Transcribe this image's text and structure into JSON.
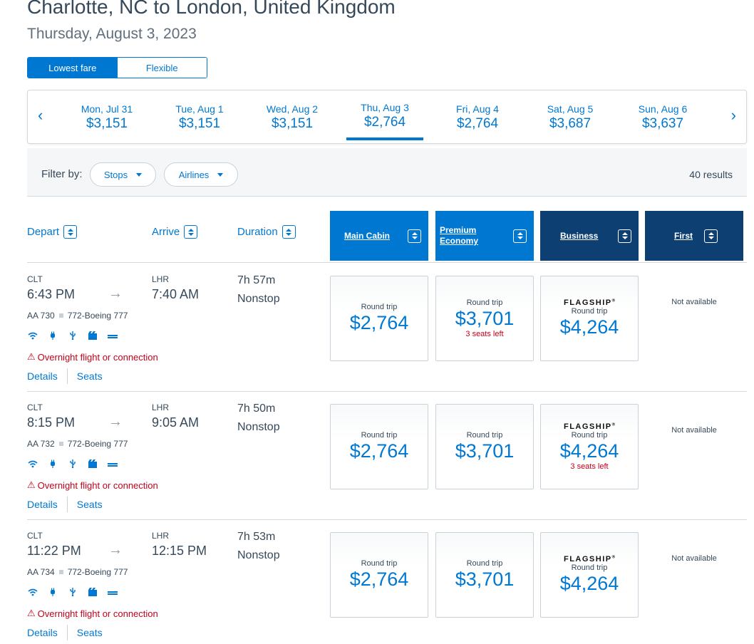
{
  "header": {
    "title": "Charlotte, NC to London, United Kingdom",
    "date": "Thursday, August 3, 2023"
  },
  "fare_toggle": {
    "lowest": "Lowest fare",
    "flexible": "Flexible"
  },
  "date_nav": {
    "prev_icon": "chevron-left-icon",
    "next_icon": "chevron-right-icon",
    "prev_glyph": "‹",
    "next_glyph": "›",
    "days": [
      {
        "label": "Mon, Jul 31",
        "price": "$3,151"
      },
      {
        "label": "Tue, Aug 1",
        "price": "$3,151"
      },
      {
        "label": "Wed, Aug 2",
        "price": "$3,151"
      },
      {
        "label": "Thu, Aug 3",
        "price": "$2,764"
      },
      {
        "label": "Fri, Aug 4",
        "price": "$2,764"
      },
      {
        "label": "Sat, Aug 5",
        "price": "$3,687"
      },
      {
        "label": "Sun, Aug 6",
        "price": "$3,637"
      }
    ],
    "selected_index": 3
  },
  "filters": {
    "label": "Filter by:",
    "stops": "Stops",
    "airlines": "Airlines",
    "results": "40 results"
  },
  "columns": {
    "depart": "Depart",
    "arrive": "Arrive",
    "duration": "Duration",
    "main": "Main Cabin",
    "premium_1": "Premium",
    "premium_2": "Economy",
    "business": "Business",
    "first": "First"
  },
  "colors": {
    "accent": "#0078d2",
    "dark_header": "#0d3f73",
    "warning": "#c30019"
  },
  "common": {
    "round_trip": "Round trip",
    "flagship": "FLAGSHIP",
    "reg": "®",
    "not_available": "Not available",
    "overnight": "Overnight flight or connection",
    "details": "Details",
    "seats": "Seats",
    "arrow_glyph": "→",
    "warn_glyph": "⚠"
  },
  "flights": [
    {
      "from": "CLT",
      "to": "LHR",
      "depart": "6:43 PM",
      "arrive": "7:40 AM",
      "duration": "7h 57m",
      "stops": "Nonstop",
      "flight": "AA 730",
      "aircraft": "772-Boeing 777",
      "main": {
        "price": "$2,764",
        "seats": ""
      },
      "premium": {
        "price": "$3,701",
        "seats": "3 seats left"
      },
      "business": {
        "price": "$4,264",
        "seats": ""
      }
    },
    {
      "from": "CLT",
      "to": "LHR",
      "depart": "8:15 PM",
      "arrive": "9:05 AM",
      "duration": "7h 50m",
      "stops": "Nonstop",
      "flight": "AA 732",
      "aircraft": "772-Boeing 777",
      "main": {
        "price": "$2,764",
        "seats": ""
      },
      "premium": {
        "price": "$3,701",
        "seats": ""
      },
      "business": {
        "price": "$4,264",
        "seats": "3 seats left"
      }
    },
    {
      "from": "CLT",
      "to": "LHR",
      "depart": "11:22 PM",
      "arrive": "12:15 PM",
      "duration": "7h 53m",
      "stops": "Nonstop",
      "flight": "AA 734",
      "aircraft": "772-Boeing 777",
      "main": {
        "price": "$2,764",
        "seats": ""
      },
      "premium": {
        "price": "$3,701",
        "seats": ""
      },
      "business": {
        "price": "$4,264",
        "seats": ""
      }
    }
  ]
}
